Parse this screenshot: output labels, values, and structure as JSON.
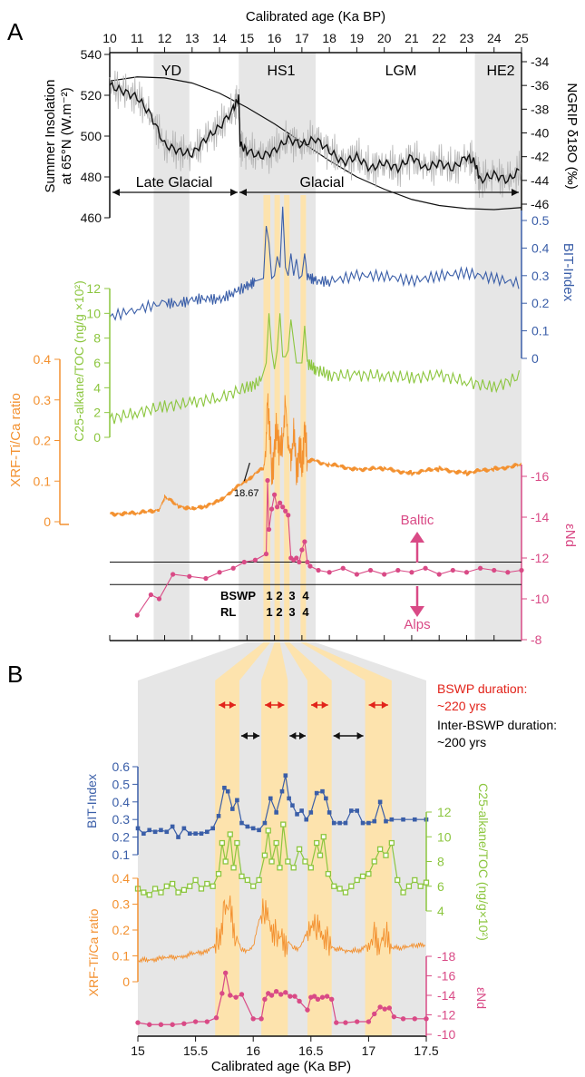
{
  "colors": {
    "black": "#111111",
    "grey_band": "#e6e6e6",
    "bswp_band": "#fde3ad",
    "bit": "#3a5ea8",
    "alkane": "#8cc63f",
    "xrf": "#f39130",
    "nd": "#d94a86",
    "insolation": "#111111",
    "ngrip_raw": "#b3b3b3",
    "ngrip_smooth": "#111111",
    "red_arrow": "#e2231a"
  },
  "panel_a": {
    "label": "A",
    "top_axis_title": "Calibrated age (Ka BP)",
    "x_ticks": [
      "10",
      "11",
      "12",
      "13",
      "14",
      "15",
      "16",
      "17",
      "18",
      "19",
      "20",
      "21",
      "22",
      "23",
      "24",
      "25"
    ],
    "periods": [
      "YD",
      "HS1",
      "LGM",
      "HE2"
    ],
    "late_glacial_label": "Late Glacial",
    "glacial_label": "Glacial",
    "bswp_row_label": "BSWP",
    "rl_row_label": "RL",
    "bswp_numbers": [
      "1",
      "2",
      "3",
      "4"
    ],
    "annotation_age": "18.67",
    "baltic_label": "Baltic",
    "alps_label": "Alps"
  },
  "panel_b": {
    "label": "B",
    "bottom_axis_title": "Calibrated age (Ka BP)",
    "x_ticks": [
      "15",
      "15.5",
      "16",
      "16.5",
      "17",
      "17.5"
    ],
    "bswp_duration_label": "BSWP duration:",
    "bswp_duration_value": "~220 yrs",
    "inter_duration_label": "Inter-BSWP duration:",
    "inter_duration_value": "~200 yrs"
  },
  "chart_data": [
    {
      "type": "line",
      "panel": "A",
      "axis_title": "Summer Insolation at 65°N (W.m⁻²)",
      "axis_title_line1": "Summer Insolation",
      "axis_title_line2": "at 65°N (W.m⁻²)",
      "y_ticks": [
        "540",
        "520",
        "500",
        "480",
        "460"
      ],
      "ylim": [
        460,
        540
      ],
      "series": [
        {
          "name": "Insolation",
          "x": [
            10,
            11,
            12,
            13,
            14,
            15,
            16,
            17,
            18,
            19,
            20,
            21,
            22,
            23,
            24,
            25
          ],
          "y": [
            527,
            529,
            528.5,
            526,
            521,
            514,
            506,
            497,
            488,
            480,
            474,
            469,
            466,
            464.5,
            464,
            465
          ]
        }
      ]
    },
    {
      "type": "line",
      "panel": "A",
      "axis_title": "NGRIP δ18O (‰)",
      "y_ticks": [
        "-34",
        "-36",
        "-38",
        "-40",
        "-42",
        "-44",
        "-46"
      ],
      "ylim": [
        -46,
        -34
      ],
      "series": [
        {
          "name": "NGRIP",
          "x": [
            10,
            10.5,
            11,
            11.5,
            12,
            12.5,
            13,
            13.5,
            14,
            14.5,
            14.7,
            14.75,
            15,
            15.5,
            16,
            16.5,
            17,
            17.5,
            18,
            18.5,
            19,
            19.5,
            20,
            20.5,
            21,
            21.5,
            22,
            22.5,
            23,
            23.3,
            23.5,
            24,
            24.5,
            25
          ],
          "y": [
            -36,
            -36.5,
            -37,
            -38.5,
            -41,
            -41.5,
            -41.8,
            -40.5,
            -39.5,
            -38,
            -37,
            -41,
            -41.5,
            -42,
            -41.5,
            -40.5,
            -41,
            -40.5,
            -41.5,
            -42.5,
            -42,
            -43,
            -42.5,
            -43,
            -42,
            -43,
            -42.5,
            -43,
            -42,
            -42.5,
            -44,
            -43.5,
            -44,
            -43
          ]
        }
      ]
    },
    {
      "type": "line",
      "panel": "A",
      "axis_title": "BIT-Index",
      "y_ticks": [
        "0.5",
        "0.4",
        "0.3",
        "0.2",
        "0.1",
        "0"
      ],
      "ylim": [
        0,
        0.5
      ],
      "series": [
        {
          "name": "BIT-Index",
          "x": [
            10,
            11,
            12,
            12.5,
            13,
            13.5,
            14,
            14.5,
            15,
            15.3,
            15.6,
            15.7,
            15.8,
            15.9,
            16,
            16.1,
            16.2,
            16.3,
            16.4,
            16.5,
            16.6,
            16.7,
            16.8,
            16.9,
            17,
            17.1,
            17.2,
            17.5,
            18,
            19,
            20,
            21,
            22,
            23,
            24,
            25
          ],
          "y": [
            0.15,
            0.18,
            0.2,
            0.2,
            0.21,
            0.22,
            0.21,
            0.24,
            0.26,
            0.28,
            0.29,
            0.48,
            0.42,
            0.29,
            0.3,
            0.37,
            0.33,
            0.55,
            0.33,
            0.3,
            0.38,
            0.3,
            0.36,
            0.29,
            0.3,
            0.38,
            0.3,
            0.28,
            0.28,
            0.3,
            0.3,
            0.28,
            0.3,
            0.31,
            0.29,
            0.27
          ]
        }
      ]
    },
    {
      "type": "line",
      "panel": "A",
      "axis_title": "C25-alkane/TOC (ng/g ×10²)",
      "y_ticks": [
        "12",
        "10",
        "8",
        "6",
        "4",
        "2",
        "0"
      ],
      "ylim": [
        0,
        12
      ],
      "series": [
        {
          "name": "C25-alkane/TOC",
          "x": [
            10,
            11,
            12,
            13,
            14,
            15,
            15.5,
            15.7,
            15.8,
            15.9,
            16,
            16.1,
            16.2,
            16.3,
            16.4,
            16.5,
            16.6,
            16.8,
            17,
            17.1,
            17.2,
            17.5,
            18,
            19,
            20,
            21,
            22,
            23,
            24,
            25
          ],
          "y": [
            1.5,
            2,
            2.5,
            2.8,
            3.2,
            4,
            4.5,
            6,
            10,
            7,
            5.5,
            7,
            10,
            6.5,
            6.5,
            7,
            9.5,
            6,
            6,
            9,
            6,
            5.5,
            5,
            5,
            5,
            4.8,
            5,
            4.5,
            4,
            5
          ]
        }
      ]
    },
    {
      "type": "line",
      "panel": "A",
      "axis_title": "XRF-Ti/Ca ratio",
      "y_ticks": [
        "0.4",
        "0.3",
        "0.2",
        "0.1",
        "0"
      ],
      "ylim": [
        0,
        0.4
      ],
      "series": [
        {
          "name": "XRF-Ti/Ca",
          "x": [
            10,
            11,
            11.8,
            12,
            12.5,
            13,
            13.5,
            14,
            14.5,
            15,
            15.3,
            15.6,
            15.7,
            15.75,
            15.8,
            15.9,
            16,
            16.1,
            16.2,
            16.3,
            16.4,
            16.5,
            16.6,
            16.7,
            16.8,
            16.9,
            17,
            17.1,
            17.2,
            17.5,
            18,
            19,
            20,
            21,
            22,
            23,
            24,
            25
          ],
          "y": [
            0.02,
            0.02,
            0.03,
            0.06,
            0.04,
            0.03,
            0.04,
            0.05,
            0.08,
            0.1,
            0.12,
            0.13,
            0.18,
            0.34,
            0.22,
            0.15,
            0.15,
            0.25,
            0.16,
            0.2,
            0.3,
            0.18,
            0.17,
            0.2,
            0.15,
            0.15,
            0.16,
            0.21,
            0.15,
            0.15,
            0.14,
            0.13,
            0.13,
            0.12,
            0.13,
            0.12,
            0.13,
            0.14
          ]
        }
      ]
    },
    {
      "type": "scatter",
      "panel": "A",
      "axis_title": "εNd",
      "y_ticks": [
        "-16",
        "-14",
        "-12",
        "-10",
        "-8"
      ],
      "ylim": [
        -16,
        -8
      ],
      "series": [
        {
          "name": "εNd",
          "x": [
            11,
            11.5,
            11.8,
            12.3,
            12.9,
            13.5,
            14,
            14.5,
            14.9,
            15.3,
            15.7,
            15.75,
            15.8,
            15.9,
            16,
            16.1,
            16.2,
            16.3,
            16.4,
            16.5,
            16.6,
            16.7,
            16.8,
            16.9,
            17,
            17.1,
            17.2,
            17.3,
            17.6,
            18,
            18.5,
            19,
            19.5,
            20,
            20.5,
            21,
            21.5,
            22,
            22.5,
            23,
            23.5,
            24,
            24.5,
            25
          ],
          "y": [
            -9.2,
            -10.2,
            -10,
            -11.2,
            -11.1,
            -11,
            -11.3,
            -11.5,
            -11.8,
            -11.9,
            -12.2,
            -15.8,
            -13.4,
            -14.4,
            -15.1,
            -14.5,
            -14.7,
            -14.5,
            -14.3,
            -14.1,
            -12,
            -11.9,
            -12,
            -11.8,
            -12.4,
            -12.8,
            -11.8,
            -11.6,
            -11.4,
            -11.3,
            -11.5,
            -11.2,
            -11.4,
            -11.2,
            -11.4,
            -11.3,
            -11.5,
            -11.2,
            -11.4,
            -11.3,
            -11.5,
            -11.4,
            -11.3,
            -11.4
          ]
        }
      ]
    },
    {
      "type": "line",
      "panel": "B",
      "axis_title": "BIT-Index",
      "y_ticks": [
        "0.6",
        "0.5",
        "0.4",
        "0.3",
        "0.2",
        "0.1"
      ],
      "ylim": [
        0.1,
        0.6
      ],
      "series": [
        {
          "name": "BIT-Index",
          "x": [
            15,
            15.05,
            15.1,
            15.15,
            15.2,
            15.25,
            15.3,
            15.35,
            15.4,
            15.45,
            15.5,
            15.55,
            15.6,
            15.65,
            15.7,
            15.75,
            15.78,
            15.82,
            15.86,
            15.9,
            15.95,
            16,
            16.05,
            16.1,
            16.15,
            16.2,
            16.25,
            16.28,
            16.31,
            16.34,
            16.38,
            16.42,
            16.46,
            16.5,
            16.55,
            16.6,
            16.63,
            16.66,
            16.7,
            16.75,
            16.8,
            16.85,
            16.9,
            16.95,
            17,
            17.05,
            17.1,
            17.15,
            17.2,
            17.3,
            17.4,
            17.5
          ],
          "y": [
            0.25,
            0.22,
            0.24,
            0.23,
            0.24,
            0.23,
            0.26,
            0.2,
            0.25,
            0.22,
            0.22,
            0.22,
            0.23,
            0.25,
            0.32,
            0.48,
            0.46,
            0.36,
            0.41,
            0.28,
            0.26,
            0.25,
            0.24,
            0.28,
            0.42,
            0.34,
            0.46,
            0.55,
            0.42,
            0.38,
            0.33,
            0.35,
            0.3,
            0.34,
            0.45,
            0.46,
            0.42,
            0.34,
            0.28,
            0.28,
            0.28,
            0.35,
            0.35,
            0.28,
            0.28,
            0.29,
            0.4,
            0.29,
            0.3,
            0.3,
            0.3,
            0.3
          ]
        }
      ]
    },
    {
      "type": "line",
      "panel": "B",
      "axis_title": "C25-alkane/TOC (ng/g×10²)",
      "y_ticks": [
        "12",
        "10",
        "8",
        "6",
        "4"
      ],
      "ylim": [
        4,
        12
      ],
      "series": [
        {
          "name": "C25-alkane/TOC",
          "x": [
            15,
            15.05,
            15.1,
            15.15,
            15.2,
            15.25,
            15.3,
            15.35,
            15.4,
            15.45,
            15.5,
            15.55,
            15.6,
            15.65,
            15.7,
            15.73,
            15.76,
            15.8,
            15.83,
            15.86,
            15.9,
            15.95,
            16,
            16.05,
            16.1,
            16.13,
            16.16,
            16.2,
            16.23,
            16.26,
            16.3,
            16.35,
            16.4,
            16.45,
            16.5,
            16.55,
            16.58,
            16.61,
            16.65,
            16.7,
            16.75,
            16.8,
            16.85,
            16.9,
            16.95,
            17,
            17.05,
            17.1,
            17.15,
            17.2,
            17.25,
            17.3,
            17.35,
            17.4,
            17.45,
            17.5
          ],
          "y": [
            5.8,
            5.5,
            5.3,
            5.8,
            5.5,
            6,
            6.2,
            5.5,
            5.7,
            6,
            6.5,
            5.8,
            6.2,
            6,
            7,
            9.5,
            8,
            10.2,
            7.5,
            9.5,
            6.8,
            6.5,
            6,
            6.5,
            8.5,
            10.5,
            8,
            9.5,
            7.5,
            11,
            8,
            7.5,
            9,
            8,
            7.5,
            9.5,
            8.5,
            10,
            7,
            6,
            5.8,
            5.5,
            6,
            6.5,
            6.8,
            7,
            8,
            9,
            8.5,
            9.5,
            6.5,
            5.5,
            6,
            6.5,
            6,
            6.3
          ]
        }
      ]
    },
    {
      "type": "line",
      "panel": "B",
      "axis_title": "XRF-Ti/Ca ratio",
      "y_ticks": [
        "0.4",
        "0.3",
        "0.2",
        "0.1",
        "0"
      ],
      "ylim": [
        0,
        0.4
      ],
      "series": [
        {
          "name": "XRF-Ti/Ca",
          "x": [
            15,
            15.2,
            15.4,
            15.6,
            15.7,
            15.75,
            15.8,
            15.85,
            15.9,
            15.95,
            16,
            16.05,
            16.1,
            16.15,
            16.2,
            16.25,
            16.3,
            16.35,
            16.4,
            16.45,
            16.5,
            16.55,
            16.6,
            16.65,
            16.7,
            16.8,
            16.9,
            17,
            17.05,
            17.1,
            17.15,
            17.2,
            17.3,
            17.4,
            17.5
          ],
          "y": [
            0.08,
            0.09,
            0.1,
            0.12,
            0.15,
            0.3,
            0.28,
            0.18,
            0.12,
            0.12,
            0.13,
            0.24,
            0.28,
            0.22,
            0.18,
            0.17,
            0.16,
            0.13,
            0.13,
            0.17,
            0.22,
            0.2,
            0.18,
            0.14,
            0.13,
            0.12,
            0.12,
            0.14,
            0.17,
            0.15,
            0.17,
            0.13,
            0.13,
            0.14,
            0.14
          ]
        }
      ]
    },
    {
      "type": "scatter",
      "panel": "B",
      "axis_title": "εNd",
      "y_ticks": [
        "-18",
        "-16",
        "-14",
        "-12",
        "-10"
      ],
      "ylim": [
        -18,
        -10
      ],
      "series": [
        {
          "name": "εNd",
          "x": [
            15,
            15.1,
            15.2,
            15.3,
            15.4,
            15.5,
            15.6,
            15.68,
            15.73,
            15.76,
            15.8,
            15.85,
            15.9,
            16,
            16.07,
            16.1,
            16.13,
            16.16,
            16.2,
            16.24,
            16.28,
            16.32,
            16.36,
            16.4,
            16.47,
            16.5,
            16.53,
            16.56,
            16.6,
            16.64,
            16.68,
            16.72,
            16.8,
            16.9,
            17,
            17.05,
            17.1,
            17.14,
            17.18,
            17.22,
            17.3,
            17.4,
            17.5
          ],
          "y": [
            -11.2,
            -11,
            -11,
            -11,
            -11.1,
            -11.3,
            -11.3,
            -11.7,
            -14.2,
            -16.3,
            -14,
            -13.8,
            -14.1,
            -11.6,
            -11.6,
            -13.6,
            -14.2,
            -14,
            -14.4,
            -14.1,
            -14.3,
            -13.9,
            -13.9,
            -13.4,
            -12.5,
            -13.8,
            -13.9,
            -13.6,
            -13.8,
            -13.9,
            -13.6,
            -11.2,
            -11.2,
            -11.3,
            -11.3,
            -12.1,
            -12.8,
            -12.6,
            -12.7,
            -11.8,
            -11.6,
            -11.6,
            -11.6
          ]
        }
      ]
    }
  ]
}
